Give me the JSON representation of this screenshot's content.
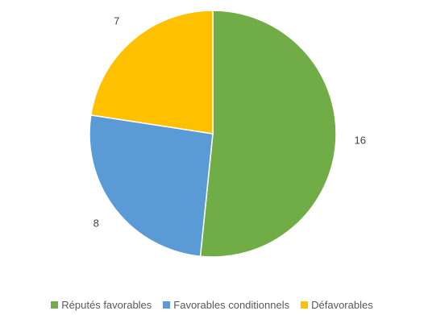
{
  "chart_data": {
    "type": "pie",
    "title": "",
    "legend_position": "bottom",
    "series": [
      {
        "values": [
          16,
          8,
          7
        ]
      }
    ],
    "categories": [
      "Réputés favorables",
      "Favorables conditionnels",
      "Défavorables"
    ],
    "slices": [
      {
        "label": "Réputés favorables",
        "value": 16,
        "color": "#70AD47"
      },
      {
        "label": "Favorables conditionnels",
        "value": 8,
        "color": "#5B9BD5"
      },
      {
        "label": "Défavorables",
        "value": 7,
        "color": "#FFC000"
      }
    ],
    "data_labels_shown": true,
    "start_angle_deg": 0,
    "direction": "clockwise"
  }
}
